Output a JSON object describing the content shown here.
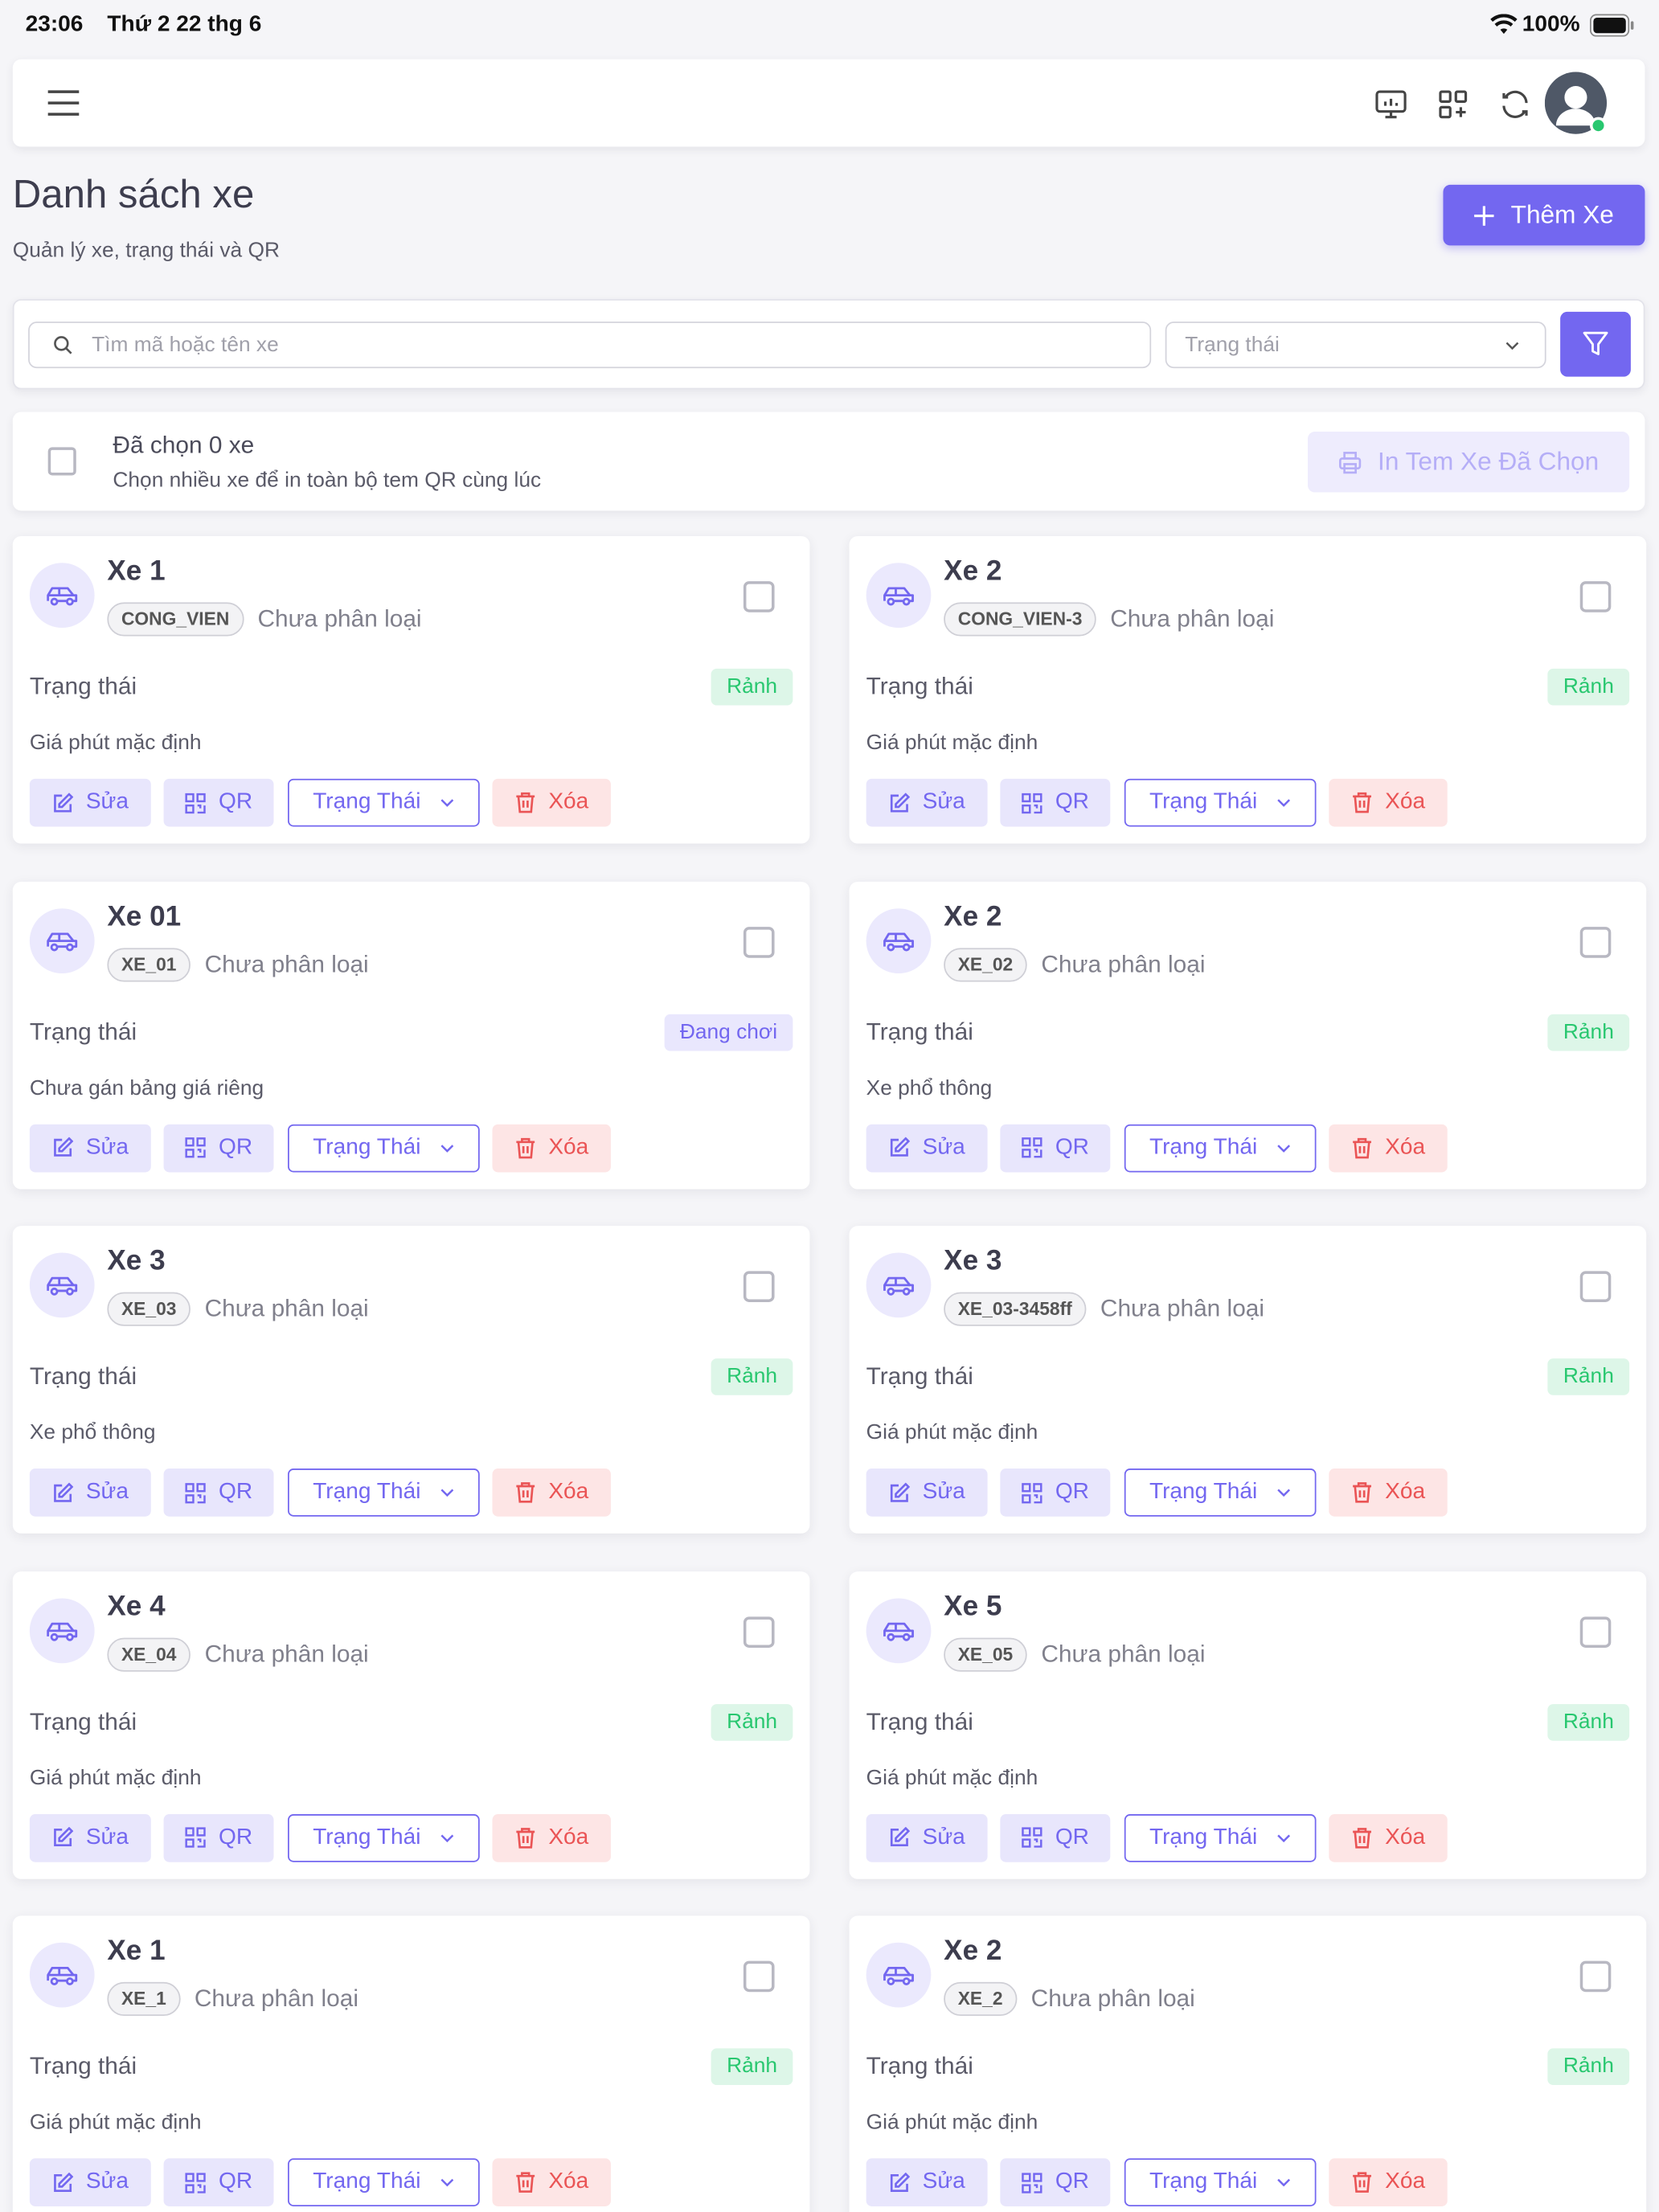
{
  "status_bar": {
    "time": "23:06",
    "date": "Thứ 2 22 thg 6",
    "battery": "100%"
  },
  "page": {
    "title": "Danh sách xe",
    "subtitle": "Quản lý xe, trạng thái và QR",
    "add_button": "Thêm Xe"
  },
  "filters": {
    "search_placeholder": "Tìm mã hoặc tên xe",
    "status_placeholder": "Trạng thái"
  },
  "selection": {
    "count_text": "Đã chọn 0 xe",
    "hint": "Chọn nhiều xe để in toàn bộ tem QR cùng lúc",
    "print_button": "In Tem Xe Đã Chọn"
  },
  "card_labels": {
    "status": "Trạng thái",
    "edit": "Sửa",
    "qr": "QR",
    "status_menu": "Trạng Thái",
    "delete": "Xóa"
  },
  "cards": [
    {
      "name": "Xe 1",
      "code": "CONG_VIEN",
      "category": "Chưa phân loại",
      "status": "Rảnh",
      "badge_color": "#28c76f",
      "price": "Giá phút mặc định"
    },
    {
      "name": "Xe 2",
      "code": "CONG_VIEN-3",
      "category": "Chưa phân loại",
      "status": "Rảnh",
      "badge_color": "#28c76f",
      "price": "Giá phút mặc định"
    },
    {
      "name": "Xe 01",
      "code": "XE_01",
      "category": "Chưa phân loại",
      "status": "Đang chơi",
      "badge_color": "#7367f0",
      "price": "Chưa gán bảng giá riêng"
    },
    {
      "name": "Xe 2",
      "code": "XE_02",
      "category": "Chưa phân loại",
      "status": "Rảnh",
      "badge_color": "#28c76f",
      "price": "Xe phổ thông"
    },
    {
      "name": "Xe 3",
      "code": "XE_03",
      "category": "Chưa phân loại",
      "status": "Rảnh",
      "badge_color": "#28c76f",
      "price": "Xe phổ thông"
    },
    {
      "name": "Xe 3",
      "code": "XE_03-3458ff",
      "category": "Chưa phân loại",
      "status": "Rảnh",
      "badge_color": "#28c76f",
      "price": "Giá phút mặc định"
    },
    {
      "name": "Xe 4",
      "code": "XE_04",
      "category": "Chưa phân loại",
      "status": "Rảnh",
      "badge_color": "#28c76f",
      "price": "Giá phút mặc định"
    },
    {
      "name": "Xe 5",
      "code": "XE_05",
      "category": "Chưa phân loại",
      "status": "Rảnh",
      "badge_color": "#28c76f",
      "price": "Giá phút mặc định"
    },
    {
      "name": "Xe 1",
      "code": "XE_1",
      "category": "Chưa phân loại",
      "status": "Rảnh",
      "badge_color": "#28c76f",
      "price": "Giá phút mặc định"
    },
    {
      "name": "Xe 2",
      "code": "XE_2",
      "category": "Chưa phân loại",
      "status": "Rảnh",
      "badge_color": "#28c76f",
      "price": "Giá phút mặc định"
    }
  ]
}
